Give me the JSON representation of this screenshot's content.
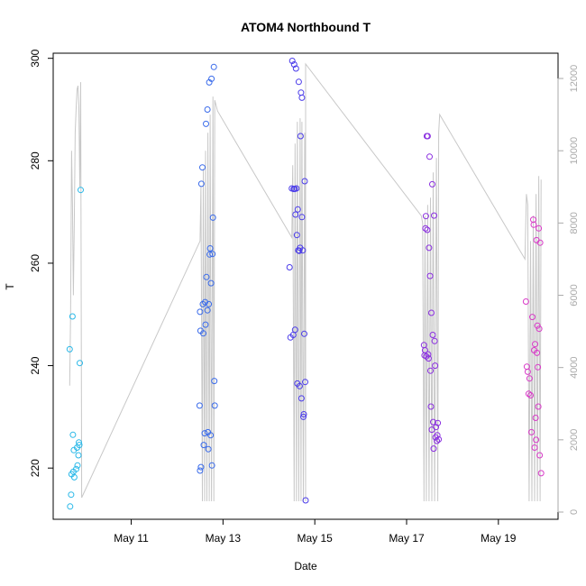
{
  "chart_data": {
    "type": "scatter",
    "title": "ATOM4 Northbound T",
    "xlabel": "Date",
    "ylabel": "T",
    "x_ticks": [
      {
        "day": 11,
        "label": "May 11"
      },
      {
        "day": 13,
        "label": "May 13"
      },
      {
        "day": 15,
        "label": "May 15"
      },
      {
        "day": 17,
        "label": "May 17"
      },
      {
        "day": 19,
        "label": "May 19"
      }
    ],
    "xlim_days": [
      9.3,
      20.3
    ],
    "ylim": [
      210,
      301
    ],
    "y_ticks": [
      220,
      240,
      260,
      280,
      300
    ],
    "y2lim": [
      -200,
      12700
    ],
    "y2_ticks": [
      0,
      2000,
      4000,
      6000,
      8000,
      10000,
      12000
    ],
    "grid": false,
    "legend": "none",
    "colors": {
      "axis": "#000000",
      "right_axis": "#aaaaaa",
      "line": "#c8c8c8",
      "point_palette": [
        "#29b8e8",
        "#3a6bea",
        "#4b3cea",
        "#8a2ee0",
        "#d93ac8",
        "#e83ad0"
      ]
    },
    "groups": [
      {
        "color": "#29b8e8",
        "points": [
          [
            9.67,
            212.5
          ],
          [
            9.69,
            214.8
          ],
          [
            9.7,
            218.8
          ],
          [
            9.66,
            243.2
          ],
          [
            9.72,
            249.6
          ],
          [
            9.74,
            219.3
          ],
          [
            9.75,
            223.5
          ],
          [
            9.76,
            218.2
          ],
          [
            9.73,
            226.5
          ],
          [
            9.8,
            219.8
          ],
          [
            9.82,
            224
          ],
          [
            9.83,
            220.5
          ],
          [
            9.85,
            222.5
          ],
          [
            9.86,
            225
          ],
          [
            9.87,
            224.5
          ],
          [
            9.88,
            240.5
          ],
          [
            9.9,
            274.3
          ]
        ]
      },
      {
        "color": "#3a6bea",
        "points": [
          [
            12.5,
            219.5
          ],
          [
            12.52,
            220.2
          ],
          [
            12.49,
            232.2
          ],
          [
            12.5,
            250.5
          ],
          [
            12.51,
            246.8
          ],
          [
            12.53,
            275.5
          ],
          [
            12.55,
            278.7
          ],
          [
            12.56,
            252
          ],
          [
            12.57,
            246.3
          ],
          [
            12.58,
            224.5
          ],
          [
            12.6,
            226.8
          ],
          [
            12.61,
            252.4
          ],
          [
            12.62,
            248
          ],
          [
            12.63,
            287.2
          ],
          [
            12.64,
            257.3
          ],
          [
            12.66,
            290
          ],
          [
            12.66,
            250.8
          ],
          [
            12.67,
            227
          ],
          [
            12.68,
            223.7
          ],
          [
            12.69,
            252
          ],
          [
            12.7,
            295.3
          ],
          [
            12.71,
            261.7
          ],
          [
            12.72,
            262.9
          ],
          [
            12.73,
            226.4
          ],
          [
            12.74,
            256.1
          ],
          [
            12.75,
            296
          ],
          [
            12.76,
            220.5
          ],
          [
            12.77,
            261.8
          ],
          [
            12.78,
            268.9
          ],
          [
            12.8,
            298.3
          ],
          [
            12.81,
            237
          ],
          [
            12.82,
            232.2
          ]
        ]
      },
      {
        "color": "#4b3cea",
        "points": [
          [
            14.45,
            259.2
          ],
          [
            14.47,
            245.5
          ],
          [
            14.5,
            274.6
          ],
          [
            14.51,
            299.5
          ],
          [
            14.53,
            246
          ],
          [
            14.54,
            274.5
          ],
          [
            14.55,
            298.8
          ],
          [
            14.56,
            274.5
          ],
          [
            14.57,
            247
          ],
          [
            14.58,
            269.5
          ],
          [
            14.59,
            298
          ],
          [
            14.6,
            274.6
          ],
          [
            14.61,
            265.5
          ],
          [
            14.62,
            236.5
          ],
          [
            14.63,
            270.5
          ],
          [
            14.64,
            262.5
          ],
          [
            14.65,
            295.4
          ],
          [
            14.66,
            262.4
          ],
          [
            14.67,
            236
          ],
          [
            14.68,
            263
          ],
          [
            14.69,
            284.8
          ],
          [
            14.7,
            293.3
          ],
          [
            14.71,
            233.6
          ],
          [
            14.72,
            269
          ],
          [
            14.72,
            292.3
          ],
          [
            14.74,
            262.5
          ],
          [
            14.75,
            230
          ],
          [
            14.76,
            230.5
          ],
          [
            14.77,
            246.2
          ],
          [
            14.78,
            276
          ],
          [
            14.79,
            236.8
          ],
          [
            14.8,
            213.7
          ]
        ]
      },
      {
        "color": "#8a2ee0",
        "points": [
          [
            17.38,
            244
          ],
          [
            17.39,
            242
          ],
          [
            17.4,
            243
          ],
          [
            17.41,
            266.8
          ],
          [
            17.42,
            269.2
          ],
          [
            17.43,
            241.8
          ],
          [
            17.44,
            284.8
          ],
          [
            17.45,
            266.5
          ],
          [
            17.46,
            284.8
          ],
          [
            17.47,
            242.2
          ],
          [
            17.48,
            241.4
          ],
          [
            17.49,
            263
          ],
          [
            17.5,
            280.8
          ],
          [
            17.51,
            257.5
          ],
          [
            17.52,
            239
          ],
          [
            17.53,
            232
          ],
          [
            17.54,
            250.3
          ],
          [
            17.55,
            227.5
          ],
          [
            17.56,
            275.4
          ],
          [
            17.57,
            246
          ],
          [
            17.58,
            229
          ],
          [
            17.59,
            223.8
          ],
          [
            17.6,
            269.3
          ],
          [
            17.61,
            244.8
          ],
          [
            17.62,
            240
          ],
          [
            17.63,
            226
          ],
          [
            17.64,
            228
          ],
          [
            17.66,
            225.3
          ],
          [
            17.67,
            226.4
          ],
          [
            17.68,
            228.8
          ],
          [
            17.7,
            225.6
          ]
        ]
      },
      {
        "color": "#d93ac8",
        "points": [
          [
            19.6,
            252.5
          ],
          [
            19.62,
            239.8
          ],
          [
            19.64,
            238.8
          ],
          [
            19.66,
            234.5
          ],
          [
            19.68,
            237.5
          ],
          [
            19.7,
            234.2
          ],
          [
            19.72,
            227
          ],
          [
            19.74,
            249.5
          ],
          [
            19.76,
            268.5
          ],
          [
            19.77,
            267.5
          ],
          [
            19.78,
            243
          ],
          [
            19.79,
            224
          ],
          [
            19.8,
            244.2
          ],
          [
            19.81,
            229.8
          ],
          [
            19.82,
            225.5
          ],
          [
            19.83,
            264.5
          ],
          [
            19.84,
            242.5
          ],
          [
            19.85,
            247.8
          ],
          [
            19.86,
            239.7
          ],
          [
            19.87,
            232
          ],
          [
            19.88,
            266.8
          ],
          [
            19.89,
            247.2
          ],
          [
            19.9,
            222.5
          ],
          [
            19.91,
            264
          ],
          [
            19.93,
            219
          ]
        ]
      }
    ],
    "line_series": {
      "name": "",
      "axis": "right",
      "points": [
        [
          9.66,
          3500
        ],
        [
          9.68,
          5500
        ],
        [
          9.7,
          10000
        ],
        [
          9.72,
          8500
        ],
        [
          9.74,
          6000
        ],
        [
          9.76,
          8000
        ],
        [
          9.78,
          10500
        ],
        [
          9.8,
          11200
        ],
        [
          9.82,
          11700
        ],
        [
          9.84,
          11800
        ],
        [
          9.86,
          11200
        ],
        [
          9.88,
          9000
        ],
        [
          9.9,
          11900
        ],
        [
          9.92,
          400
        ],
        [
          12.5,
          7500
        ],
        [
          12.52,
          9000
        ],
        [
          12.55,
          300
        ],
        [
          12.57,
          9500
        ],
        [
          12.6,
          300
        ],
        [
          12.62,
          10000
        ],
        [
          12.65,
          300
        ],
        [
          12.67,
          10500
        ],
        [
          12.7,
          300
        ],
        [
          12.72,
          11000
        ],
        [
          12.75,
          300
        ],
        [
          12.78,
          11500
        ],
        [
          12.8,
          300
        ],
        [
          12.82,
          11400
        ],
        [
          12.88,
          11100
        ],
        [
          14.5,
          7600
        ],
        [
          14.52,
          9600
        ],
        [
          14.55,
          300
        ],
        [
          14.57,
          10200
        ],
        [
          14.6,
          300
        ],
        [
          14.62,
          10800
        ],
        [
          14.65,
          300
        ],
        [
          14.68,
          10900
        ],
        [
          14.7,
          300
        ],
        [
          14.72,
          10800
        ],
        [
          14.75,
          300
        ],
        [
          14.78,
          10500
        ],
        [
          14.8,
          300
        ],
        [
          14.8,
          12400
        ],
        [
          17.32,
          8200
        ],
        [
          17.35,
          8000
        ],
        [
          17.38,
          300
        ],
        [
          17.4,
          8200
        ],
        [
          17.43,
          300
        ],
        [
          17.46,
          8500
        ],
        [
          17.49,
          300
        ],
        [
          17.52,
          8700
        ],
        [
          17.55,
          300
        ],
        [
          17.58,
          9400
        ],
        [
          17.61,
          300
        ],
        [
          17.65,
          9800
        ],
        [
          17.68,
          300
        ],
        [
          17.7,
          10500
        ],
        [
          17.72,
          11000
        ],
        [
          19.58,
          7000
        ],
        [
          19.61,
          8800
        ],
        [
          19.64,
          8500
        ],
        [
          19.67,
          300
        ],
        [
          19.7,
          7500
        ],
        [
          19.73,
          300
        ],
        [
          19.76,
          8200
        ],
        [
          19.79,
          300
        ],
        [
          19.82,
          8800
        ],
        [
          19.85,
          300
        ],
        [
          19.88,
          9300
        ],
        [
          19.91,
          300
        ],
        [
          19.93,
          9200
        ]
      ]
    }
  }
}
